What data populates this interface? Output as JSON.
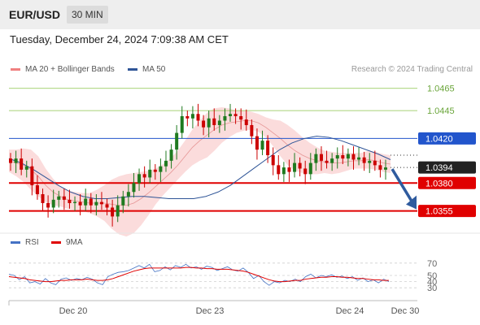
{
  "header": {
    "pair": "EUR/USD",
    "timeframe": "30 MIN"
  },
  "timestamp": "Tuesday, December 24, 2024 7:09:38 AM CET",
  "legend": {
    "bollinger": "MA 20 + Bollinger Bands",
    "ma50": "MA 50",
    "rsi": "RSI",
    "rsi_ma": "9MA"
  },
  "credit": "Research © 2024 Trading Central",
  "colors": {
    "bollinger": "#f08080",
    "ma50": "#2f5597",
    "rsi": "#4472c4",
    "rsi_ma": "#e00000",
    "bull": "#1f7a1f",
    "bear": "#cc0000",
    "support": "#e00000",
    "resistance": "#8bc34a",
    "pivot": "#2255cc",
    "arrow": "#2f5b9e"
  },
  "chart_data": [
    {
      "type": "candlestick",
      "x_ticks": [
        "Dec 20",
        "Dec 23",
        "Dec 24",
        "Dec 30"
      ],
      "ylim": [
        1.0335,
        1.0475
      ],
      "levels": [
        {
          "value": 1.0465,
          "label": "1.0465",
          "kind": "resistance"
        },
        {
          "value": 1.0445,
          "label": "1.0445",
          "kind": "resistance"
        },
        {
          "value": 1.042,
          "label": "1.0420",
          "kind": "pivot"
        },
        {
          "value": 1.038,
          "label": "1.0380",
          "kind": "support"
        },
        {
          "value": 1.0355,
          "label": "1.0355",
          "kind": "support"
        }
      ],
      "last_price": {
        "value": 1.0394,
        "label": "1.0394"
      },
      "arrow": {
        "from": 1.0394,
        "to": 1.0355
      },
      "close_path": [
        1.0398,
        1.0402,
        1.0392,
        1.0395,
        1.0378,
        1.037,
        1.0362,
        1.0358,
        1.0365,
        1.0368,
        1.0365,
        1.0362,
        1.0363,
        1.036,
        1.0366,
        1.036,
        1.0363,
        1.0361,
        1.0358,
        1.035,
        1.036,
        1.0368,
        1.0372,
        1.038,
        1.0388,
        1.0385,
        1.0392,
        1.039,
        1.0395,
        1.04,
        1.041,
        1.0425,
        1.044,
        1.0438,
        1.0442,
        1.0436,
        1.043,
        1.0438,
        1.0432,
        1.0436,
        1.044,
        1.0442,
        1.044,
        1.0437,
        1.0432,
        1.0422,
        1.041,
        1.0418,
        1.0405,
        1.0396,
        1.0388,
        1.0394,
        1.039,
        1.0398,
        1.0393,
        1.0388,
        1.0398,
        1.0406,
        1.04,
        1.0398,
        1.0402,
        1.0405,
        1.0402,
        1.0406,
        1.0401,
        1.0403,
        1.0398,
        1.04,
        1.0396,
        1.0392,
        1.0394
      ],
      "bollinger_mid": [
        1.04,
        1.0398,
        1.0396,
        1.0392,
        1.0386,
        1.0378,
        1.0372,
        1.0368,
        1.0365,
        1.0364,
        1.0363,
        1.0362,
        1.0362,
        1.0362,
        1.0361,
        1.036,
        1.036,
        1.0362,
        1.0366,
        1.0371,
        1.0377,
        1.0383,
        1.0389,
        1.0396,
        1.0404,
        1.0412,
        1.0418,
        1.0423,
        1.0428,
        1.0432,
        1.0434,
        1.0435,
        1.0436,
        1.0436,
        1.0434,
        1.043,
        1.0425,
        1.042,
        1.0414,
        1.0409,
        1.0405,
        1.0402,
        1.04,
        1.0399,
        1.0398,
        1.0398,
        1.0399,
        1.04,
        1.04,
        1.0401,
        1.04,
        1.0398,
        1.0397
      ],
      "bollinger_width": [
        0.001,
        0.0012,
        0.0015,
        0.0018,
        0.0018,
        0.0015,
        0.0012,
        0.0009,
        0.0008,
        0.0008,
        0.0008,
        0.0009,
        0.0012,
        0.0016,
        0.0022,
        0.0026,
        0.0028,
        0.0027,
        0.0024,
        0.002,
        0.0016,
        0.0014,
        0.0013,
        0.0013,
        0.0014,
        0.0016,
        0.0018,
        0.002,
        0.0019,
        0.0016,
        0.0013,
        0.001,
        0.0009,
        0.0008,
        0.0008,
        0.0009,
        0.0012,
        0.0016,
        0.0018,
        0.0018,
        0.0016,
        0.0014,
        0.0012,
        0.001,
        0.001,
        0.0009,
        0.0008,
        0.0007,
        0.0007,
        0.0008,
        0.0008,
        0.0008,
        0.0008
      ],
      "ma50": [
        1.0402,
        1.0398,
        1.0392,
        1.0385,
        1.0378,
        1.0372,
        1.0368,
        1.0366,
        1.0366,
        1.0367,
        1.0368,
        1.0368,
        1.0367,
        1.0366,
        1.0366,
        1.0366,
        1.0368,
        1.0372,
        1.0378,
        1.0386,
        1.0394,
        1.0402,
        1.041,
        1.0416,
        1.042,
        1.0422,
        1.0421,
        1.0418,
        1.0414,
        1.041,
        1.0406,
        1.0401
      ]
    },
    {
      "type": "line",
      "title": "RSI",
      "y_ticks": [
        70,
        50,
        40,
        30
      ],
      "ylim": [
        25,
        75
      ],
      "series": [
        {
          "name": "RSI",
          "values": [
            52,
            50,
            43,
            48,
            38,
            40,
            36,
            45,
            38,
            35,
            44,
            46,
            42,
            45,
            43,
            47,
            44,
            38,
            35,
            48,
            52,
            55,
            56,
            58,
            62,
            66,
            62,
            68,
            56,
            58,
            64,
            59,
            66,
            63,
            68,
            62,
            64,
            60,
            65,
            63,
            58,
            61,
            64,
            59,
            57,
            62,
            55,
            45,
            50,
            40,
            34,
            40,
            38,
            42,
            40,
            44,
            40,
            48,
            52,
            46,
            50,
            48,
            51,
            47,
            49,
            45,
            48,
            42,
            46,
            40,
            43,
            38,
            44,
            40
          ]
        },
        {
          "name": "9MA",
          "values": [
            48,
            47,
            46,
            45,
            43,
            42,
            41,
            40,
            40,
            41,
            42,
            42,
            43,
            43,
            43,
            44,
            43,
            42,
            42,
            43,
            45,
            48,
            51,
            54,
            57,
            59,
            61,
            62,
            62,
            62,
            62,
            62,
            62,
            62,
            63,
            63,
            62,
            62,
            61,
            61,
            60,
            60,
            60,
            59,
            58,
            57,
            55,
            52,
            49,
            46,
            43,
            41,
            40,
            40,
            41,
            42,
            42,
            44,
            45,
            46,
            47,
            47,
            48,
            48,
            47,
            47,
            46,
            45,
            45,
            44,
            43,
            43,
            42,
            42
          ]
        }
      ]
    }
  ]
}
